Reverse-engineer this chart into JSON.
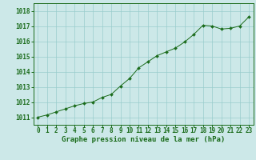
{
  "x": [
    0,
    1,
    2,
    3,
    4,
    5,
    6,
    7,
    8,
    9,
    10,
    11,
    12,
    13,
    14,
    15,
    16,
    17,
    18,
    19,
    20,
    21,
    22,
    23
  ],
  "y": [
    1011.0,
    1011.15,
    1011.35,
    1011.55,
    1011.75,
    1011.9,
    1012.0,
    1012.3,
    1012.5,
    1013.05,
    1013.55,
    1014.25,
    1014.65,
    1015.05,
    1015.3,
    1015.55,
    1015.95,
    1016.45,
    1017.05,
    1017.0,
    1016.8,
    1016.85,
    1017.0,
    1017.6
  ],
  "line_color": "#1a6b1a",
  "marker": "D",
  "marker_size": 2.0,
  "bg_color": "#cce8e8",
  "grid_color": "#99cccc",
  "title": "Graphe pression niveau de la mer (hPa)",
  "title_color": "#1a6b1a",
  "title_fontsize": 6.5,
  "xlabel_ticks": [
    0,
    1,
    2,
    3,
    4,
    5,
    6,
    7,
    8,
    9,
    10,
    11,
    12,
    13,
    14,
    15,
    16,
    17,
    18,
    19,
    20,
    21,
    22,
    23
  ],
  "ylim": [
    1010.5,
    1018.5
  ],
  "yticks": [
    1011,
    1012,
    1013,
    1014,
    1015,
    1016,
    1017,
    1018
  ],
  "tick_fontsize": 5.5,
  "outer_bg": "#cce8e8"
}
